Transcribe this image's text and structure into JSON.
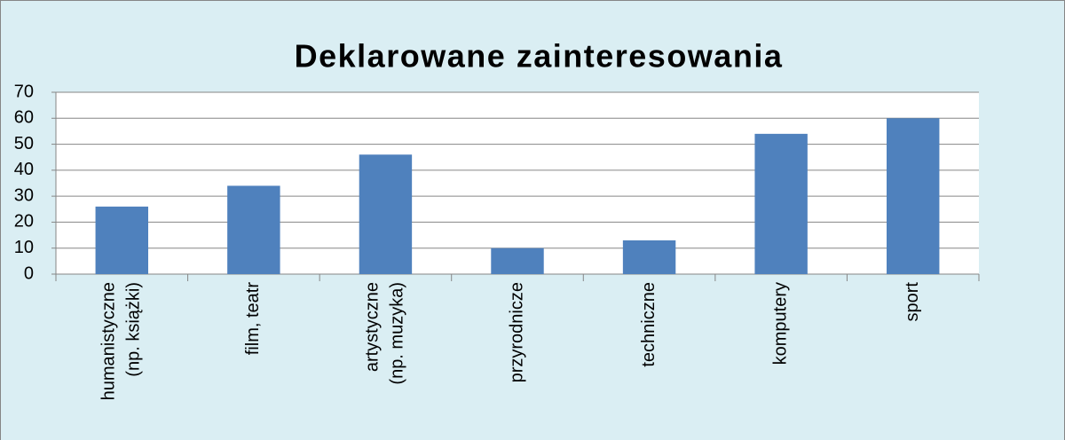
{
  "chart_data": {
    "type": "bar",
    "title": "Deklarowane zainteresowania",
    "categories": [
      "humanistyczne (np. książki)",
      "film, teatr",
      "artystyczne (np. muzyka)",
      "przyrodnicze",
      "techniczne",
      "komputery",
      "sport"
    ],
    "values": [
      26,
      34,
      46,
      10,
      13,
      54,
      60
    ],
    "color": "#4f81bd",
    "ylim": [
      0,
      70
    ],
    "yticks": [
      0,
      10,
      20,
      30,
      40,
      50,
      60,
      70
    ],
    "grid": true
  }
}
